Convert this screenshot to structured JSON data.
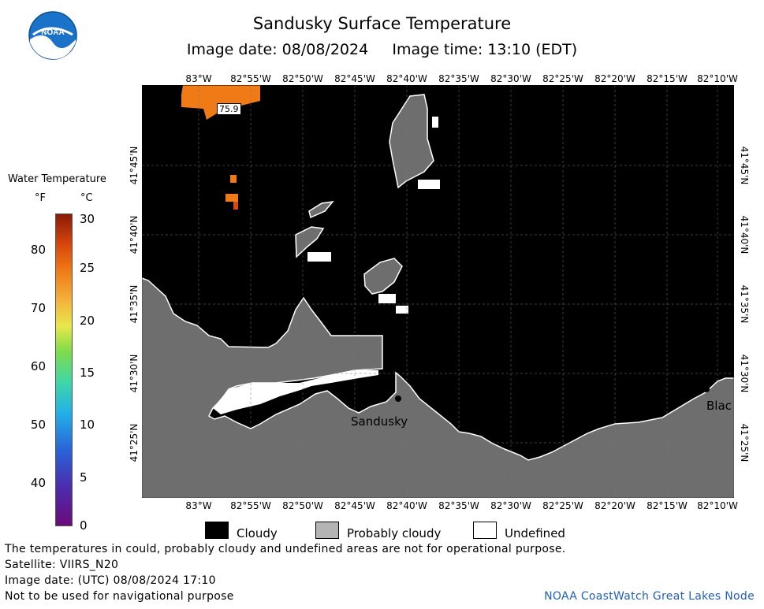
{
  "header": {
    "title": "Sandusky Surface Temperature",
    "subtitle": "Image date: 08/08/2024     Image time: 13:10 (EDT)",
    "logo_text": "NOAA"
  },
  "map": {
    "lon_labels": [
      "83°W",
      "82°55'W",
      "82°50'W",
      "82°45'W",
      "82°40'W",
      "82°35'W",
      "82°30'W",
      "82°25'W",
      "82°20'W",
      "82°15'W",
      "82°10'W"
    ],
    "lat_labels": [
      "41°45'N",
      "41°40'N",
      "41°35'N",
      "41°30'N",
      "41°25'N"
    ],
    "annotations": {
      "temp_readout": "75.9",
      "city1": "Sandusky",
      "city2": "Blac"
    },
    "colors": {
      "cloudy": "#000000",
      "land": "#6e6e6e",
      "undefined": "#ffffff",
      "warm_water": "#ef7a16"
    }
  },
  "legend": {
    "title": "Water Temperature",
    "unit_f": "°F",
    "unit_c": "°C",
    "f_ticks": [
      "80",
      "70",
      "60",
      "50",
      "40"
    ],
    "c_ticks": [
      "30",
      "25",
      "20",
      "15",
      "10",
      "5",
      "0"
    ]
  },
  "key": {
    "cloudy": "Cloudy",
    "probably_cloudy": "Probably cloudy",
    "undefined": "Undefined"
  },
  "footer": {
    "line1": "The temperatures in could, probably cloudy and undefined areas are not for operational purpose.",
    "line2": "Satellite: VIIRS_N20",
    "line3": "Image date: (UTC) 08/08/2024  17:10",
    "line4": "Not to be used for navigational purpose",
    "credit": "NOAA CoastWatch Great Lakes Node"
  }
}
